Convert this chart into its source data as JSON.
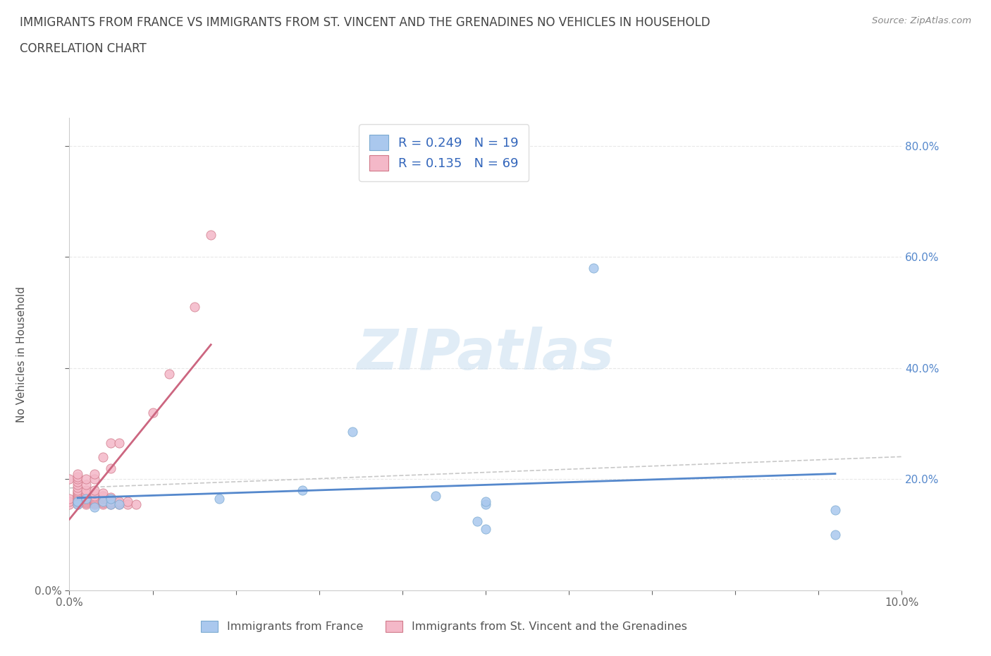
{
  "title_line1": "IMMIGRANTS FROM FRANCE VS IMMIGRANTS FROM ST. VINCENT AND THE GRENADINES NO VEHICLES IN HOUSEHOLD",
  "title_line2": "CORRELATION CHART",
  "source_text": "Source: ZipAtlas.com",
  "ylabel": "No Vehicles in Household",
  "legend_label_blue": "Immigrants from France",
  "legend_label_pink": "Immigrants from St. Vincent and the Grenadines",
  "r_blue": "0.249",
  "n_blue": "19",
  "r_pink": "0.135",
  "n_pink": "69",
  "watermark": "ZIPatlas",
  "xlim": [
    0.0,
    0.1
  ],
  "ylim": [
    0.0,
    0.85
  ],
  "blue_scatter_x": [
    0.001,
    0.001,
    0.002,
    0.003,
    0.004,
    0.005,
    0.005,
    0.006,
    0.018,
    0.028,
    0.034,
    0.044,
    0.049,
    0.05,
    0.05,
    0.05,
    0.063,
    0.092,
    0.092
  ],
  "blue_scatter_y": [
    0.155,
    0.16,
    0.165,
    0.15,
    0.16,
    0.155,
    0.165,
    0.155,
    0.165,
    0.18,
    0.285,
    0.17,
    0.125,
    0.11,
    0.155,
    0.16,
    0.58,
    0.145,
    0.1
  ],
  "pink_scatter_x": [
    0.0,
    0.0,
    0.0,
    0.0,
    0.001,
    0.001,
    0.001,
    0.001,
    0.001,
    0.001,
    0.001,
    0.001,
    0.001,
    0.001,
    0.001,
    0.001,
    0.001,
    0.001,
    0.001,
    0.001,
    0.001,
    0.002,
    0.002,
    0.002,
    0.002,
    0.002,
    0.002,
    0.002,
    0.002,
    0.002,
    0.002,
    0.002,
    0.003,
    0.003,
    0.003,
    0.003,
    0.003,
    0.003,
    0.003,
    0.003,
    0.003,
    0.003,
    0.003,
    0.004,
    0.004,
    0.004,
    0.004,
    0.004,
    0.004,
    0.004,
    0.004,
    0.005,
    0.005,
    0.005,
    0.005,
    0.005,
    0.005,
    0.005,
    0.006,
    0.006,
    0.006,
    0.006,
    0.007,
    0.007,
    0.008,
    0.01,
    0.012,
    0.015,
    0.017
  ],
  "pink_scatter_y": [
    0.155,
    0.16,
    0.165,
    0.2,
    0.155,
    0.158,
    0.16,
    0.163,
    0.165,
    0.168,
    0.17,
    0.173,
    0.175,
    0.178,
    0.18,
    0.185,
    0.19,
    0.195,
    0.2,
    0.205,
    0.21,
    0.155,
    0.158,
    0.16,
    0.163,
    0.165,
    0.168,
    0.17,
    0.175,
    0.18,
    0.19,
    0.2,
    0.155,
    0.158,
    0.16,
    0.163,
    0.165,
    0.168,
    0.17,
    0.175,
    0.18,
    0.2,
    0.21,
    0.155,
    0.158,
    0.16,
    0.165,
    0.168,
    0.17,
    0.175,
    0.24,
    0.155,
    0.158,
    0.16,
    0.165,
    0.168,
    0.22,
    0.265,
    0.155,
    0.158,
    0.16,
    0.265,
    0.155,
    0.16,
    0.155,
    0.32,
    0.39,
    0.51,
    0.64
  ],
  "blue_face_color": "#aac8ee",
  "blue_edge_color": "#7aaad0",
  "pink_face_color": "#f4b8c8",
  "pink_edge_color": "#d07888",
  "blue_trend_color": "#5588cc",
  "pink_trend_color": "#cc6680",
  "gray_dash_color": "#c8c8c8",
  "background_color": "#ffffff",
  "grid_color": "#e8e8e8",
  "title_color": "#444444",
  "tick_color": "#666666",
  "right_tick_color": "#5588cc",
  "watermark_color": "#cce0f0"
}
